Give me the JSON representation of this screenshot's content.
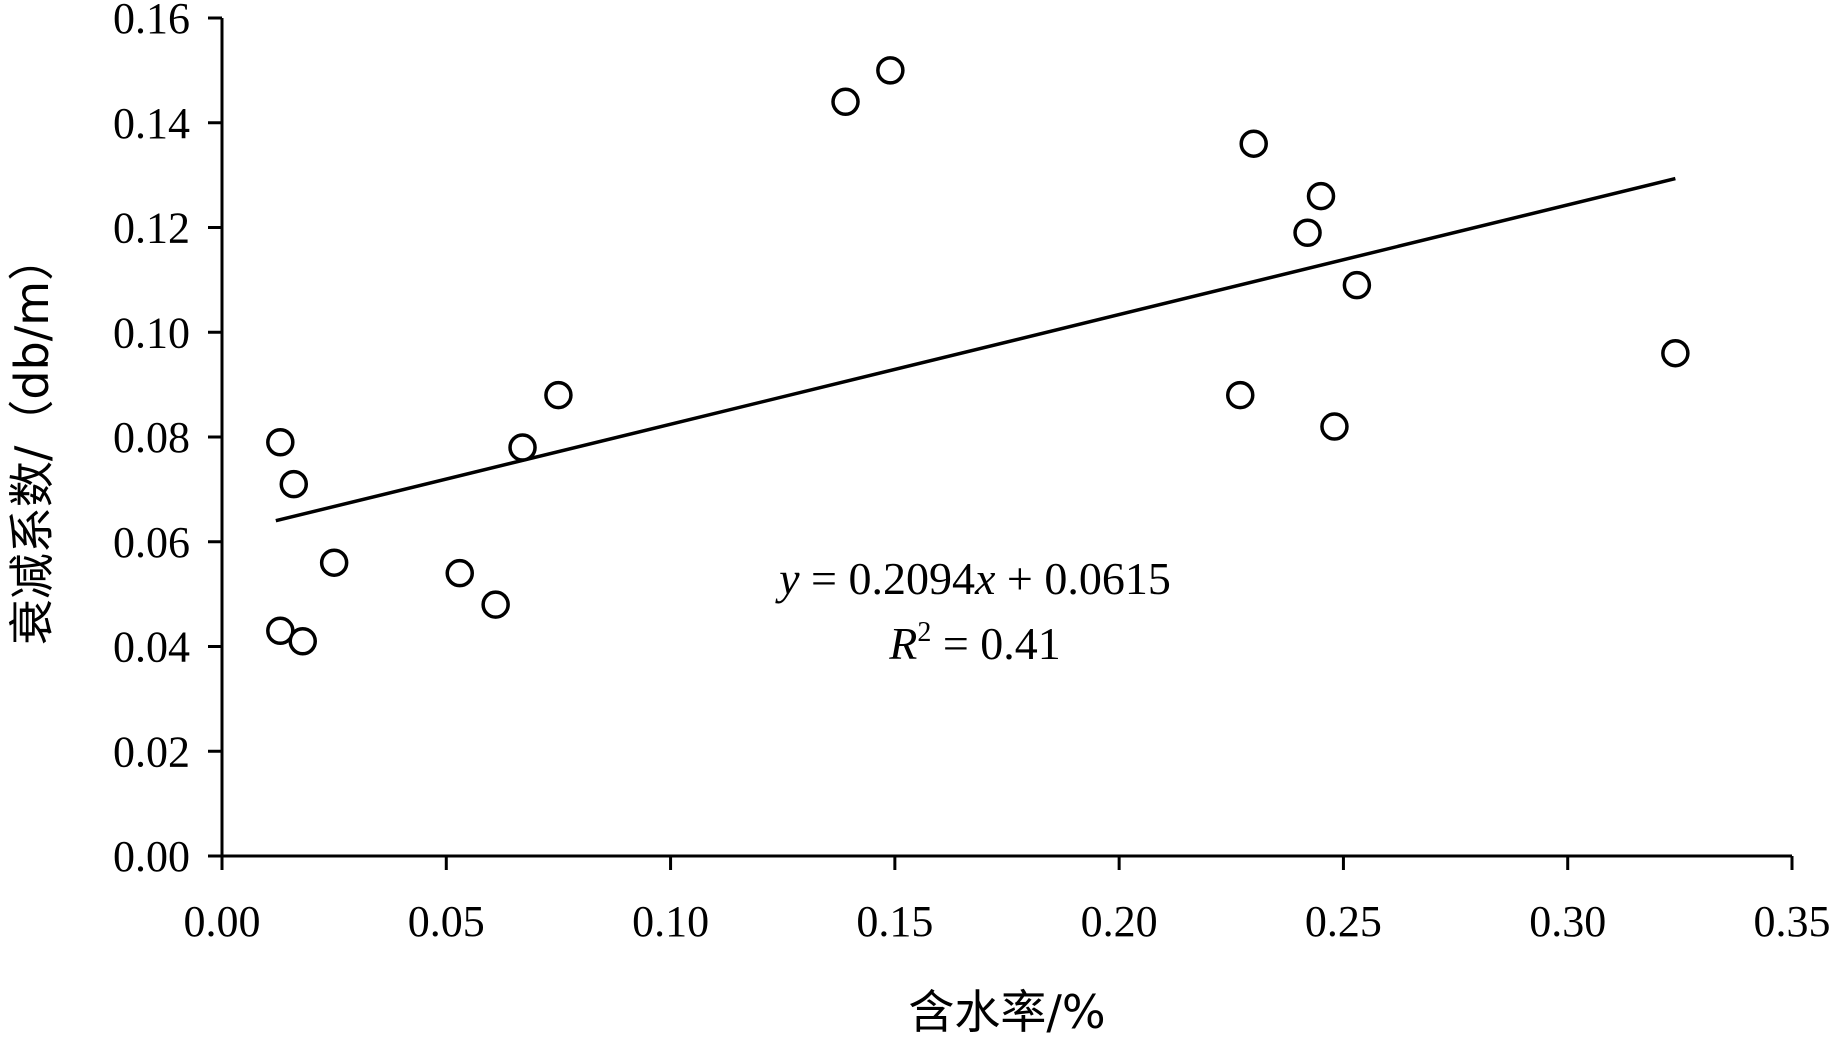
{
  "chart_data": {
    "type": "scatter",
    "title": "",
    "xlabel": "含水率/%",
    "ylabel": "衰减系数/（db/m）",
    "xlim": [
      0,
      0.35
    ],
    "ylim": [
      0,
      0.16
    ],
    "x_ticks": [
      "0.00",
      "0.05",
      "0.10",
      "0.15",
      "0.20",
      "0.25",
      "0.30",
      "0.35"
    ],
    "y_ticks": [
      "0.00",
      "0.02",
      "0.04",
      "0.06",
      "0.08",
      "0.10",
      "0.12",
      "0.14",
      "0.16"
    ],
    "grid": false,
    "points": [
      {
        "x": 0.013,
        "y": 0.079
      },
      {
        "x": 0.016,
        "y": 0.071
      },
      {
        "x": 0.025,
        "y": 0.056
      },
      {
        "x": 0.013,
        "y": 0.043
      },
      {
        "x": 0.018,
        "y": 0.041
      },
      {
        "x": 0.053,
        "y": 0.054
      },
      {
        "x": 0.061,
        "y": 0.048
      },
      {
        "x": 0.067,
        "y": 0.078
      },
      {
        "x": 0.075,
        "y": 0.088
      },
      {
        "x": 0.139,
        "y": 0.144
      },
      {
        "x": 0.149,
        "y": 0.15
      },
      {
        "x": 0.227,
        "y": 0.088
      },
      {
        "x": 0.23,
        "y": 0.136
      },
      {
        "x": 0.242,
        "y": 0.119
      },
      {
        "x": 0.245,
        "y": 0.126
      },
      {
        "x": 0.248,
        "y": 0.082
      },
      {
        "x": 0.253,
        "y": 0.109
      },
      {
        "x": 0.324,
        "y": 0.096
      }
    ],
    "trendline": {
      "slope": 0.2094,
      "intercept": 0.0615,
      "x_range": [
        0.012,
        0.324
      ],
      "equation_prefix": "y",
      "equation_middle": " = 0.2094",
      "equation_x": "x",
      "equation_suffix": " + 0.0615",
      "r2_label": "R",
      "r2_exp": "2",
      "r2_value": " = 0.41"
    }
  }
}
